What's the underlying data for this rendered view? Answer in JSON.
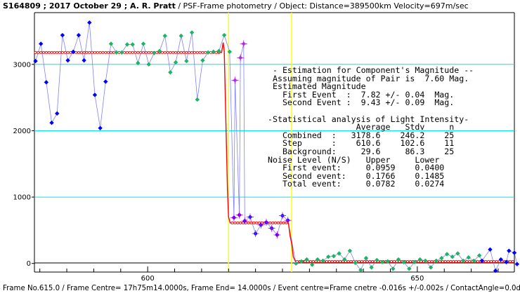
{
  "header": {
    "id": "S164809 ; 2017 October 29 ; A. R. Pratt",
    "rest": " / PSF-Frame photometry / Object: Distance=389500km Velocity=697m/sec"
  },
  "footer": "Frame No.615.0 / Frame Centre= 17h75m14.0000s, Frame End= 14.0000s / Event centre=Frame cnetre -0.016s +/-0.002s / ContactAngle=0.0d",
  "stats_lines": [
    " - Estimation for Component's Magnitude --",
    " Assuming magnitude of Pair is  7.60 Mag.",
    " Estimated Magnitude",
    "   First Event  :  7.82 +/- 0.04  Mag.",
    "   Second Event :  9.43 +/- 0.09  Mag.",
    "",
    "-Statistical analysis of Light Intensity-",
    "                  Average   Stdv     n",
    "   Combined  :   3178.6    246.2    25",
    "   Step      :    610.6    102.6    11",
    "   Background:     29.6     86.3    25",
    "Noise Level (N/S)   Upper     Lower",
    "   First event:     0.0959    0.0400",
    "   Second event:    0.1766    0.1485",
    "   Total event:     0.0782    0.0274"
  ],
  "colors": {
    "gridline": "#00e5ee",
    "event_line": "#ffff00",
    "model": "#ff0000",
    "connector": "#8080ff",
    "blue_point": "#0000ff",
    "green_point": "#1eb464",
    "step_marker": "#cc00ff"
  },
  "chart_data": {
    "type": "scatter",
    "title": "S164809 ; 2017 October 29 ; A. R. Pratt / PSF-Frame photometry / Object: Distance=389500km Velocity=697m/sec",
    "xlabel": "",
    "ylabel": "",
    "xlim": [
      579,
      668
    ],
    "ylim": [
      -130,
      3780
    ],
    "grid": true,
    "x_ticks": [
      600,
      650
    ],
    "y_ticks": [
      0,
      1000,
      2000,
      3000
    ],
    "event_lines_x": [
      615.0,
      626.7
    ],
    "model_levels": {
      "combined": 3178.6,
      "step": 610.6,
      "background": 29.6
    },
    "blue_points": [
      [
        579.2,
        3050
      ],
      [
        580.2,
        3310
      ],
      [
        581.2,
        2730
      ],
      [
        582.2,
        2120
      ],
      [
        583.2,
        2260
      ],
      [
        584.2,
        3440
      ],
      [
        585.2,
        3060
      ],
      [
        586.2,
        3190
      ],
      [
        587.2,
        3440
      ],
      [
        588.2,
        3060
      ],
      [
        589.2,
        3630
      ],
      [
        590.2,
        2540
      ],
      [
        591.2,
        2040
      ],
      [
        592.2,
        2740
      ],
      [
        616.0,
        690
      ],
      [
        617.0,
        730
      ],
      [
        618.0,
        640
      ],
      [
        619.0,
        700
      ],
      [
        620.0,
        450
      ],
      [
        621.0,
        580
      ],
      [
        622.0,
        620
      ],
      [
        623.0,
        530
      ],
      [
        624.0,
        430
      ],
      [
        625.0,
        720
      ],
      [
        626.0,
        650
      ],
      [
        662.0,
        40
      ],
      [
        663.5,
        210
      ],
      [
        664.5,
        -110
      ],
      [
        665.5,
        60
      ],
      [
        666.5,
        20
      ],
      [
        667.0,
        190
      ],
      [
        668.0,
        160
      ],
      [
        668.5,
        -10
      ]
    ],
    "green_points": [
      [
        593.2,
        3310
      ],
      [
        594.2,
        3180
      ],
      [
        595.2,
        3180
      ],
      [
        596.2,
        3300
      ],
      [
        597.2,
        3300
      ],
      [
        598.2,
        3020
      ],
      [
        599.2,
        3310
      ],
      [
        600.2,
        3000
      ],
      [
        601.2,
        3170
      ],
      [
        602.2,
        3200
      ],
      [
        603.2,
        3430
      ],
      [
        604.2,
        2880
      ],
      [
        605.2,
        3030
      ],
      [
        606.2,
        3430
      ],
      [
        607.2,
        3050
      ],
      [
        608.2,
        3480
      ],
      [
        609.2,
        2470
      ],
      [
        610.2,
        3060
      ],
      [
        611.2,
        3180
      ],
      [
        612.2,
        3190
      ],
      [
        613.2,
        3200
      ],
      [
        614.2,
        3440
      ],
      [
        615.2,
        3190
      ],
      [
        616.2,
        2760
      ],
      [
        617.2,
        3100
      ],
      [
        617.8,
        3310
      ],
      [
        627.5,
        0
      ],
      [
        628.5,
        30
      ],
      [
        629.5,
        60
      ],
      [
        630.5,
        -20
      ],
      [
        631.5,
        60
      ],
      [
        632.5,
        40
      ],
      [
        633.5,
        100
      ],
      [
        634.5,
        110
      ],
      [
        635.5,
        150
      ],
      [
        636.5,
        60
      ],
      [
        637.5,
        190
      ],
      [
        638.5,
        10
      ],
      [
        639.5,
        -100
      ],
      [
        640.5,
        80
      ],
      [
        641.5,
        -60
      ],
      [
        642.5,
        50
      ],
      [
        643.5,
        20
      ],
      [
        644.5,
        30
      ],
      [
        645.5,
        -80
      ],
      [
        646.5,
        60
      ],
      [
        647.5,
        20
      ],
      [
        648.5,
        -80
      ],
      [
        649.5,
        20
      ],
      [
        650.5,
        60
      ],
      [
        651.5,
        40
      ],
      [
        652.5,
        -60
      ],
      [
        653.5,
        40
      ],
      [
        654.5,
        80
      ],
      [
        655.5,
        140
      ],
      [
        656.5,
        100
      ],
      [
        657.5,
        150
      ],
      [
        658.5,
        40
      ],
      [
        659.5,
        90
      ],
      [
        660.5,
        40
      ],
      [
        661.5,
        120
      ]
    ],
    "model_curve": [
      [
        579.0,
        3180
      ],
      [
        613.7,
        3180
      ],
      [
        614.0,
        3330
      ],
      [
        614.2,
        3200
      ],
      [
        614.4,
        2500
      ],
      [
        614.6,
        1790
      ],
      [
        614.8,
        1100
      ],
      [
        615.0,
        700
      ],
      [
        615.3,
        610
      ],
      [
        626.1,
        610
      ],
      [
        626.4,
        420
      ],
      [
        626.7,
        300
      ],
      [
        627.0,
        100
      ],
      [
        627.4,
        30
      ],
      [
        668.0,
        30
      ]
    ]
  }
}
